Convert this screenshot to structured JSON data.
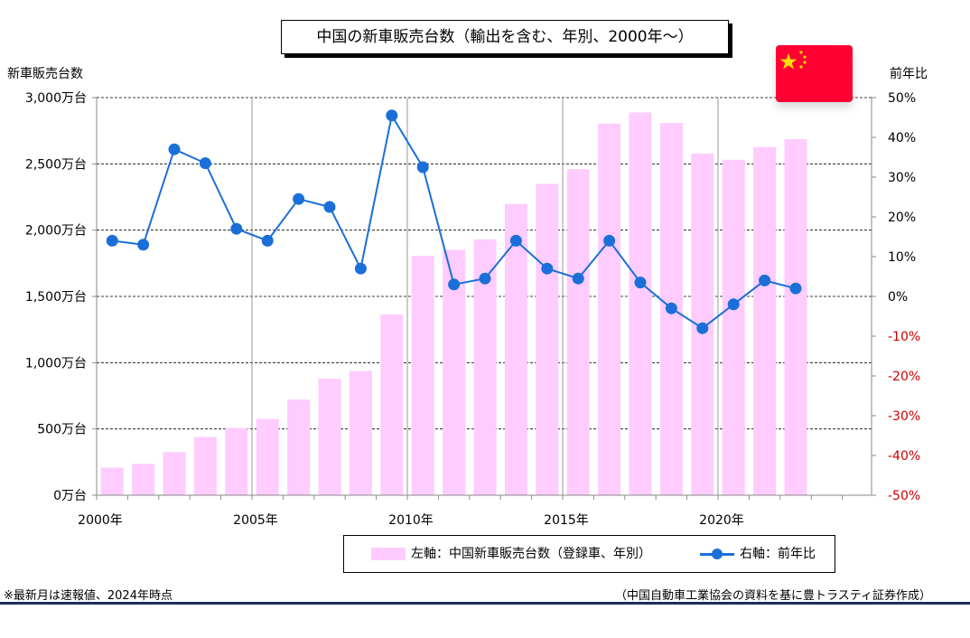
{
  "chart_data": {
    "type": "bar+line",
    "title": "中国の新車販売台数（輸出を含む、年別、2000年～）",
    "y_left_label": "新車販売台数",
    "y_right_label": "前年比",
    "years": [
      2000,
      2001,
      2002,
      2003,
      2004,
      2005,
      2006,
      2007,
      2008,
      2009,
      2010,
      2011,
      2012,
      2013,
      2014,
      2015,
      2016,
      2017,
      2018,
      2019,
      2020,
      2021,
      2022
    ],
    "x_tick_labels": [
      "2000年",
      "2005年",
      "2010年",
      "2015年",
      "2020年"
    ],
    "x_tick_years": [
      2000,
      2005,
      2010,
      2015,
      2020
    ],
    "y_left_ticks": [
      0,
      500,
      1000,
      1500,
      2000,
      2500,
      3000
    ],
    "y_left_tick_labels": [
      "0万台",
      "500万台",
      "1,000万台",
      "1,500万台",
      "2,000万台",
      "2,500万台",
      "3,000万台"
    ],
    "y_left_range": [
      0,
      3000
    ],
    "y_right_ticks": [
      -50,
      -40,
      -30,
      -20,
      -10,
      0,
      10,
      20,
      30,
      40,
      50
    ],
    "y_right_tick_labels": [
      "-50%",
      "-40%",
      "-30%",
      "-20%",
      "-10%",
      "0%",
      "10%",
      "20%",
      "30%",
      "40%",
      "50%"
    ],
    "y_right_range": [
      -50,
      50
    ],
    "series": [
      {
        "name": "左軸：中国新車販売台数（登録車、年別）",
        "axis": "left",
        "type": "bar",
        "values": [
          208,
          237,
          325,
          439,
          507,
          576,
          722,
          879,
          938,
          1364,
          1806,
          1851,
          1931,
          2198,
          2349,
          2460,
          2803,
          2888,
          2808,
          2577,
          2531,
          2627,
          2686
        ]
      },
      {
        "name": "右軸：前年比",
        "axis": "right",
        "type": "line",
        "values": [
          14,
          13,
          37,
          33.5,
          17,
          14,
          24.5,
          22.5,
          7,
          45.5,
          32.5,
          3,
          4.5,
          14,
          7,
          4.5,
          14,
          3.5,
          -3,
          -8,
          -2,
          4,
          2
        ]
      }
    ],
    "grid": {
      "horizontal": "dashed",
      "vertical_every_years": 5
    },
    "colors": {
      "bar": "#ffccff",
      "line": "#1a6fd8",
      "negative_tick": "#cc0000"
    }
  },
  "footnote_left": "※最新月は速報値、2024年時点",
  "footnote_right": "（中国自動車工業協会の資料を基に豊トラスティ証券作成）",
  "flag_icon": "china-flag-icon"
}
